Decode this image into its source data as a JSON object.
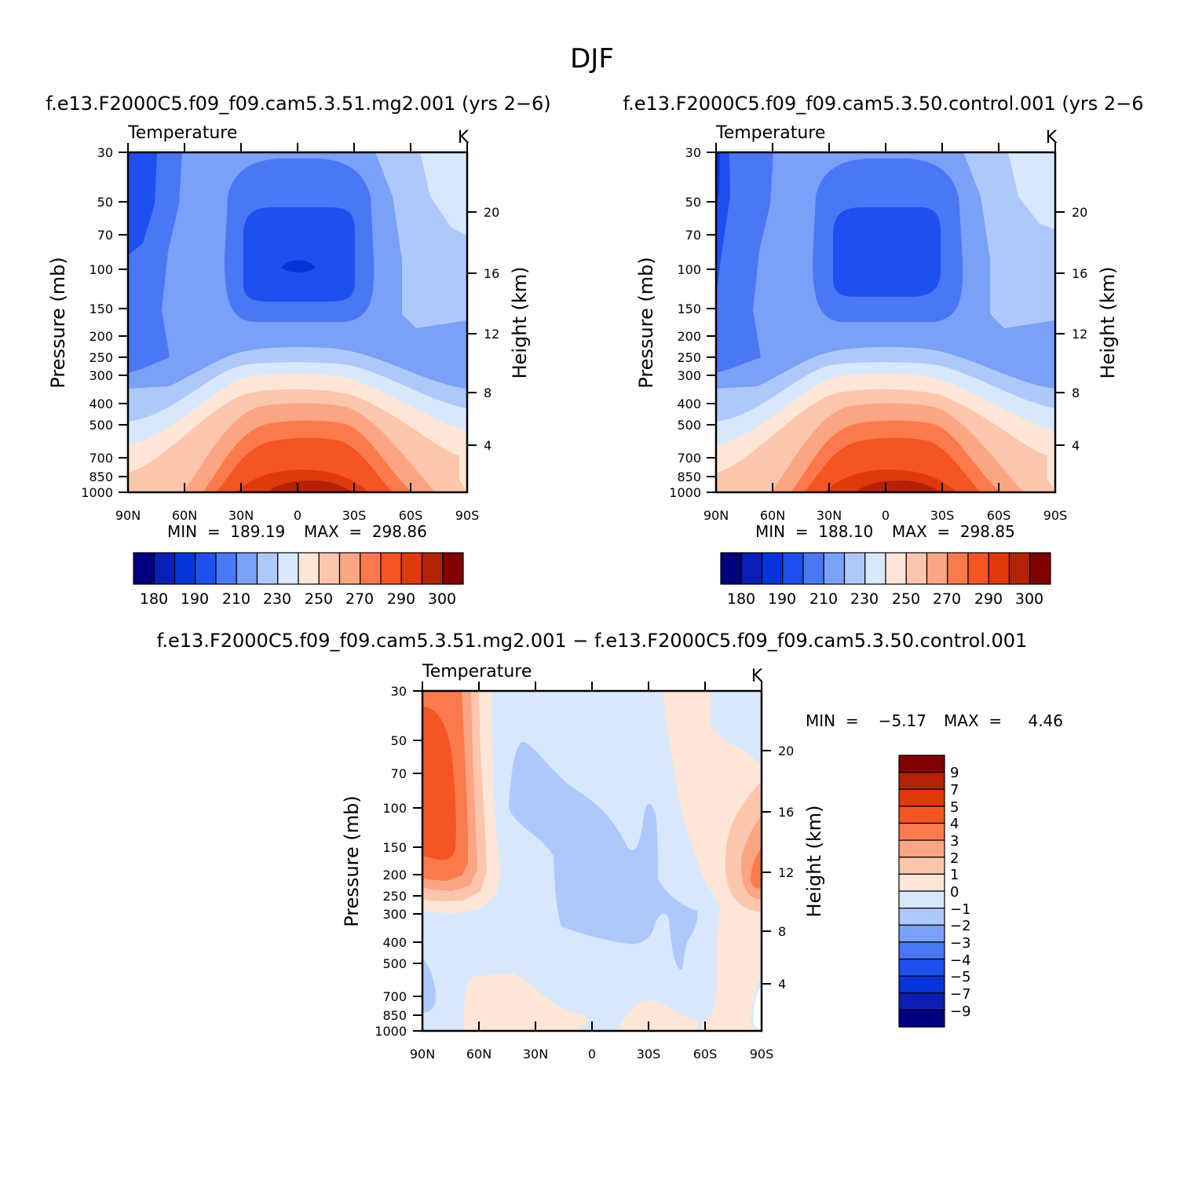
{
  "figure": {
    "title": "DJF"
  },
  "colors": {
    "temp_scale": [
      "#000080",
      "#0a1fb4",
      "#0534d9",
      "#1e50f0",
      "#4a78f5",
      "#7aa0f8",
      "#afc8fb",
      "#d7e8fc",
      "#fde6d6",
      "#fcc6ad",
      "#fba582",
      "#fb7a4c",
      "#f55522",
      "#de3a0c",
      "#b42205",
      "#800000"
    ],
    "diff_scale": [
      "#000080",
      "#0a1fb4",
      "#0534d9",
      "#1e50f0",
      "#4a78f5",
      "#7aa0f8",
      "#afc8fb",
      "#d7e8fc",
      "#fde6d6",
      "#fcc6ad",
      "#fba582",
      "#fb7a4c",
      "#f55522",
      "#de3a0c",
      "#b42205",
      "#800000"
    ]
  },
  "chart_data": [
    {
      "type": "contour",
      "panel": "test",
      "title": "f.e13.F2000C5.f09_f09.cam5.3.51.mg2.001 (yrs 2-6)",
      "title_display": "f.e13.F2000C5.f09_f09.cam5.3.51.mg2.001  (yrs  2−6)",
      "variable": "Temperature",
      "units": "K",
      "xlabel": "",
      "ylabel": "Pressure  (mb)",
      "y2label": "Height  (km)",
      "x_ticks": [
        "90N",
        "60N",
        "30N",
        "0",
        "30S",
        "60S",
        "90S"
      ],
      "y_ticks": [
        "30",
        "50",
        "70",
        "100",
        "150",
        "200",
        "250",
        "300",
        "400",
        "500",
        "700",
        "850",
        "1000"
      ],
      "y2_ticks": [
        "20",
        "16",
        "12",
        "8",
        "4"
      ],
      "ylim": [
        1000,
        30
      ],
      "xlim": [
        90,
        -90
      ],
      "min_label": "MIN  =  189.19",
      "max_label": "MAX  =  298.86",
      "min": 189.19,
      "max": 298.86,
      "colorbar_labels": [
        "180",
        "190",
        "210",
        "230",
        "250",
        "270",
        "290",
        "300"
      ],
      "contour_levels": [
        175,
        180,
        185,
        190,
        200,
        210,
        220,
        230,
        240,
        250,
        260,
        270,
        280,
        290,
        295,
        300
      ],
      "profile_lat": [
        90,
        60,
        30,
        0,
        -30,
        -60,
        -90
      ],
      "profile_p": [
        30,
        50,
        70,
        100,
        150,
        200,
        250,
        300,
        400,
        500,
        700,
        850,
        1000
      ]
    },
    {
      "type": "contour",
      "panel": "control",
      "title": "f.e13.F2000C5.f09_f09.cam5.3.50.control.001 (yrs 2-6)",
      "title_display": "f.e13.F2000C5.f09_f09.cam5.3.50.control.001  (yrs  2−6",
      "variable": "Temperature",
      "units": "K",
      "xlabel": "",
      "ylabel": "Pressure  (mb)",
      "y2label": "Height  (km)",
      "x_ticks": [
        "90N",
        "60N",
        "30N",
        "0",
        "30S",
        "60S",
        "90S"
      ],
      "y_ticks": [
        "30",
        "50",
        "70",
        "100",
        "150",
        "200",
        "250",
        "300",
        "400",
        "500",
        "700",
        "850",
        "1000"
      ],
      "y2_ticks": [
        "20",
        "16",
        "12",
        "8",
        "4"
      ],
      "ylim": [
        1000,
        30
      ],
      "xlim": [
        90,
        -90
      ],
      "min_label": "MIN  =  188.10",
      "max_label": "MAX  =  298.85",
      "min": 188.1,
      "max": 298.85,
      "colorbar_labels": [
        "180",
        "190",
        "210",
        "230",
        "250",
        "270",
        "290",
        "300"
      ]
    },
    {
      "type": "contour",
      "panel": "difference",
      "title": "f.e13.F2000C5.f09_f09.cam5.3.51.mg2.001 - f.e13.F2000C5.f09_f09.cam5.3.50.control.001",
      "title_display": "f.e13.F2000C5.f09_f09.cam5.3.51.mg2.001  −  f.e13.F2000C5.f09_f09.cam5.3.50.control.001",
      "variable": "Temperature",
      "units": "K",
      "xlabel": "",
      "ylabel": "Pressure  (mb)",
      "y2label": "Height  (km)",
      "x_ticks": [
        "90N",
        "60N",
        "30N",
        "0",
        "30S",
        "60S",
        "90S"
      ],
      "y_ticks": [
        "30",
        "50",
        "70",
        "100",
        "150",
        "200",
        "250",
        "300",
        "400",
        "500",
        "700",
        "850",
        "1000"
      ],
      "y2_ticks": [
        "20",
        "16",
        "12",
        "8",
        "4"
      ],
      "ylim": [
        1000,
        30
      ],
      "xlim": [
        90,
        -90
      ],
      "min_label": "MIN  =",
      "min_value": "−5.17",
      "max_label": "MAX  =",
      "max_value": "4.46",
      "min": -5.17,
      "max": 4.46,
      "colorbar_labels": [
        "9",
        "7",
        "5",
        "4",
        "3",
        "2",
        "1",
        "0",
        "−1",
        "−2",
        "−3",
        "−4",
        "−5",
        "−7",
        "−9"
      ]
    }
  ]
}
